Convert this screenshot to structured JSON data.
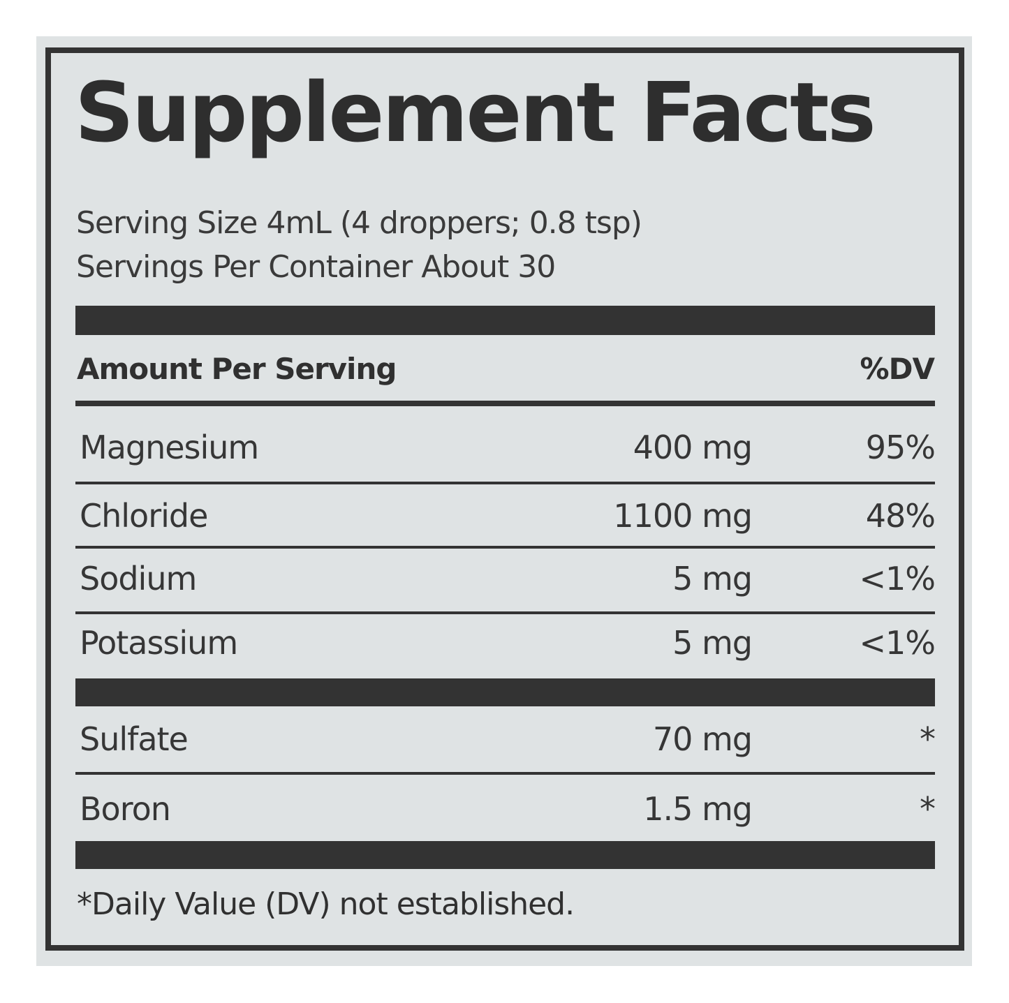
{
  "title": "Supplement Facts",
  "serving_size": "Serving Size 4mL (4 droppers; 0.8 tsp)",
  "servings_per_container": "Servings Per Container About 30",
  "header": {
    "amount_label": "Amount Per Serving",
    "dv_label": "%DV"
  },
  "nutrients": [
    {
      "name": "Magnesium",
      "amount": "400 mg",
      "dv": "95%"
    },
    {
      "name": "Chloride",
      "amount": "1100 mg",
      "dv": "48%"
    },
    {
      "name": "Sodium",
      "amount": "5 mg",
      "dv": "<1%"
    },
    {
      "name": "Potassium",
      "amount": "5 mg",
      "dv": "<1%"
    },
    {
      "name": "Sulfate",
      "amount": "70 mg",
      "dv": "*"
    },
    {
      "name": "Boron",
      "amount": "1.5 mg",
      "dv": "*"
    }
  ],
  "footnote": "*Daily Value (DV) not established.",
  "colors": {
    "background": "#dfe3e4",
    "ink": "#333333"
  }
}
